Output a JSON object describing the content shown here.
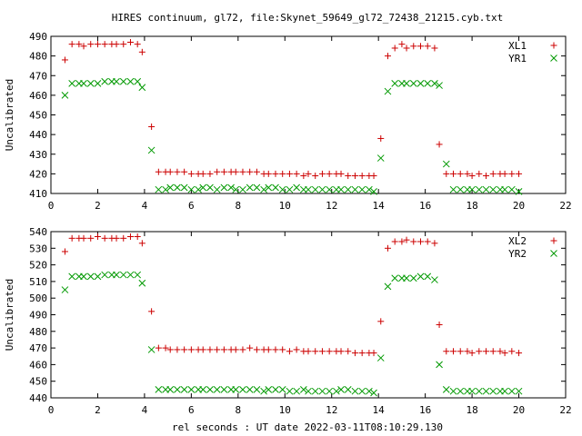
{
  "chart_data": {
    "title": "HIRES continuum, gl72, file:Skynet_59649_gl72_72438_21215.cyb.txt",
    "xlabel_bottom": "rel seconds : UT date 2022-03-11T08:10:29.130",
    "colors": {
      "series1": "#cc0000",
      "series2": "#009900"
    },
    "panels": [
      {
        "type": "scatter",
        "ylabel": "Uncalibrated",
        "xlim": [
          0,
          22
        ],
        "ylim": [
          410,
          490
        ],
        "xticks": [
          0,
          2,
          4,
          6,
          8,
          10,
          12,
          14,
          16,
          18,
          20,
          22
        ],
        "yticks": [
          410,
          420,
          430,
          440,
          450,
          460,
          470,
          480,
          490
        ],
        "series": [
          {
            "name": "XL1",
            "marker": "plus",
            "x": [
              0.6,
              0.9,
              1.2,
              1.4,
              1.7,
              2.0,
              2.3,
              2.6,
              2.8,
              3.1,
              3.4,
              3.7,
              3.9,
              4.3,
              4.6,
              4.9,
              5.1,
              5.4,
              5.7,
              6.0,
              6.3,
              6.5,
              6.8,
              7.1,
              7.4,
              7.7,
              7.9,
              8.2,
              8.5,
              8.8,
              9.1,
              9.3,
              9.6,
              9.9,
              10.2,
              10.5,
              10.8,
              11.0,
              11.3,
              11.6,
              11.9,
              12.2,
              12.4,
              12.7,
              13.0,
              13.3,
              13.6,
              13.8,
              14.1,
              14.4,
              14.7,
              15.0,
              15.2,
              15.5,
              15.8,
              16.1,
              16.4,
              16.6,
              16.9,
              17.2,
              17.5,
              17.8,
              18.0,
              18.3,
              18.6,
              18.9,
              19.2,
              19.4,
              19.7,
              20.0
            ],
            "y": [
              478,
              486,
              486,
              485,
              486,
              486,
              486,
              486,
              486,
              486,
              487,
              486,
              482,
              444,
              421,
              421,
              421,
              421,
              421,
              420,
              420,
              420,
              420,
              421,
              421,
              421,
              421,
              421,
              421,
              421,
              420,
              420,
              420,
              420,
              420,
              420,
              419,
              420,
              419,
              420,
              420,
              420,
              420,
              419,
              419,
              419,
              419,
              419,
              438,
              480,
              484,
              486,
              484,
              485,
              485,
              485,
              484,
              435,
              420,
              420,
              420,
              420,
              419,
              420,
              419,
              420,
              420,
              420,
              420,
              420
            ]
          },
          {
            "name": "YR1",
            "marker": "cross",
            "x": [
              0.6,
              0.9,
              1.2,
              1.4,
              1.7,
              2.0,
              2.3,
              2.6,
              2.8,
              3.1,
              3.4,
              3.7,
              3.9,
              4.3,
              4.6,
              4.9,
              5.1,
              5.4,
              5.7,
              6.0,
              6.3,
              6.5,
              6.8,
              7.1,
              7.4,
              7.7,
              7.9,
              8.2,
              8.5,
              8.8,
              9.1,
              9.3,
              9.6,
              9.9,
              10.2,
              10.5,
              10.8,
              11.0,
              11.3,
              11.6,
              11.9,
              12.2,
              12.4,
              12.7,
              13.0,
              13.3,
              13.6,
              13.8,
              14.1,
              14.4,
              14.7,
              15.0,
              15.2,
              15.5,
              15.8,
              16.1,
              16.4,
              16.6,
              16.9,
              17.2,
              17.5,
              17.8,
              18.0,
              18.3,
              18.6,
              18.9,
              19.2,
              19.4,
              19.7,
              20.0
            ],
            "y": [
              460,
              466,
              466,
              466,
              466,
              466,
              467,
              467,
              467,
              467,
              467,
              467,
              464,
              432,
              412,
              412,
              413,
              413,
              413,
              412,
              412,
              413,
              413,
              412,
              413,
              413,
              412,
              412,
              413,
              413,
              412,
              413,
              413,
              412,
              412,
              413,
              412,
              412,
              412,
              412,
              412,
              412,
              412,
              412,
              412,
              412,
              412,
              411,
              428,
              462,
              466,
              466,
              466,
              466,
              466,
              466,
              466,
              465,
              425,
              412,
              412,
              412,
              412,
              412,
              412,
              412,
              412,
              412,
              412,
              411
            ]
          }
        ]
      },
      {
        "type": "scatter",
        "ylabel": "Uncalibrated",
        "xlim": [
          0,
          22
        ],
        "ylim": [
          440,
          540
        ],
        "xticks": [
          0,
          2,
          4,
          6,
          8,
          10,
          12,
          14,
          16,
          18,
          20,
          22
        ],
        "yticks": [
          440,
          450,
          460,
          470,
          480,
          490,
          500,
          510,
          520,
          530,
          540
        ],
        "series": [
          {
            "name": "XL2",
            "marker": "plus",
            "x": [
              0.6,
              0.9,
              1.2,
              1.4,
              1.7,
              2.0,
              2.3,
              2.6,
              2.8,
              3.1,
              3.4,
              3.7,
              3.9,
              4.3,
              4.6,
              4.9,
              5.1,
              5.4,
              5.7,
              6.0,
              6.3,
              6.5,
              6.8,
              7.1,
              7.4,
              7.7,
              7.9,
              8.2,
              8.5,
              8.8,
              9.1,
              9.3,
              9.6,
              9.9,
              10.2,
              10.5,
              10.8,
              11.0,
              11.3,
              11.6,
              11.9,
              12.2,
              12.4,
              12.7,
              13.0,
              13.3,
              13.6,
              13.8,
              14.1,
              14.4,
              14.7,
              15.0,
              15.2,
              15.5,
              15.8,
              16.1,
              16.4,
              16.6,
              16.9,
              17.2,
              17.5,
              17.8,
              18.0,
              18.3,
              18.6,
              18.9,
              19.2,
              19.4,
              19.7,
              20.0
            ],
            "y": [
              528,
              536,
              536,
              536,
              536,
              537,
              536,
              536,
              536,
              536,
              537,
              537,
              533,
              492,
              470,
              470,
              469,
              469,
              469,
              469,
              469,
              469,
              469,
              469,
              469,
              469,
              469,
              469,
              470,
              469,
              469,
              469,
              469,
              469,
              468,
              469,
              468,
              468,
              468,
              468,
              468,
              468,
              468,
              468,
              467,
              467,
              467,
              467,
              486,
              530,
              534,
              534,
              535,
              534,
              534,
              534,
              533,
              484,
              468,
              468,
              468,
              468,
              467,
              468,
              468,
              468,
              468,
              467,
              468,
              467
            ]
          },
          {
            "name": "YR2",
            "marker": "cross",
            "x": [
              0.6,
              0.9,
              1.2,
              1.4,
              1.7,
              2.0,
              2.3,
              2.6,
              2.8,
              3.1,
              3.4,
              3.7,
              3.9,
              4.3,
              4.6,
              4.9,
              5.1,
              5.4,
              5.7,
              6.0,
              6.3,
              6.5,
              6.8,
              7.1,
              7.4,
              7.7,
              7.9,
              8.2,
              8.5,
              8.8,
              9.1,
              9.3,
              9.6,
              9.9,
              10.2,
              10.5,
              10.8,
              11.0,
              11.3,
              11.6,
              11.9,
              12.2,
              12.4,
              12.7,
              13.0,
              13.3,
              13.6,
              13.8,
              14.1,
              14.4,
              14.7,
              15.0,
              15.2,
              15.5,
              15.8,
              16.1,
              16.4,
              16.6,
              16.9,
              17.2,
              17.5,
              17.8,
              18.0,
              18.3,
              18.6,
              18.9,
              19.2,
              19.4,
              19.7,
              20.0
            ],
            "y": [
              505,
              513,
              513,
              513,
              513,
              513,
              514,
              514,
              514,
              514,
              514,
              514,
              509,
              469,
              445,
              445,
              445,
              445,
              445,
              445,
              445,
              445,
              445,
              445,
              445,
              445,
              445,
              445,
              445,
              445,
              444,
              445,
              445,
              445,
              444,
              444,
              445,
              444,
              444,
              444,
              444,
              444,
              445,
              445,
              444,
              444,
              444,
              443,
              464,
              507,
              512,
              512,
              512,
              512,
              513,
              513,
              511,
              460,
              445,
              444,
              444,
              444,
              444,
              444,
              444,
              444,
              444,
              444,
              444,
              444
            ]
          }
        ]
      }
    ]
  }
}
